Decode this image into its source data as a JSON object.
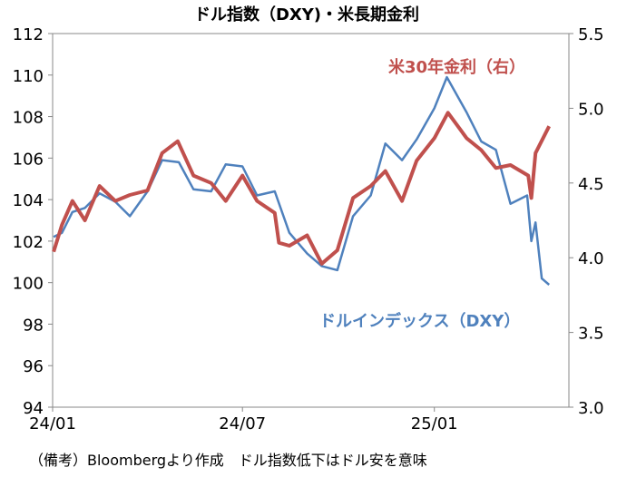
{
  "chart_data": {
    "type": "line",
    "title": "ドル指数（DXY)・米長期金利",
    "note": "（備考）Bloombergより作成　ドル指数低下はドル安を意味",
    "x_ticks": [
      "24/01",
      "24/07",
      "25/01"
    ],
    "y_left": {
      "min": 94,
      "max": 112,
      "ticks": [
        "112",
        "110",
        "108",
        "106",
        "104",
        "102",
        "100",
        "98",
        "96",
        "94"
      ]
    },
    "y_right": {
      "min": 3.0,
      "max": 5.5,
      "ticks": [
        "5.5",
        "5.0",
        "4.5",
        "4.0",
        "3.5",
        "3.0"
      ]
    },
    "grid": false,
    "series": [
      {
        "name": "ドルインデックス（DXY）",
        "axis": "left",
        "color": "#4f81bd",
        "points": [
          [
            "2024-01-02",
            102.2
          ],
          [
            "2024-01-10",
            102.4
          ],
          [
            "2024-01-20",
            103.4
          ],
          [
            "2024-02-01",
            103.6
          ],
          [
            "2024-02-15",
            104.3
          ],
          [
            "2024-03-01",
            103.9
          ],
          [
            "2024-03-15",
            103.2
          ],
          [
            "2024-04-01",
            104.4
          ],
          [
            "2024-04-15",
            105.9
          ],
          [
            "2024-05-01",
            105.8
          ],
          [
            "2024-05-15",
            104.5
          ],
          [
            "2024-06-01",
            104.4
          ],
          [
            "2024-06-15",
            105.7
          ],
          [
            "2024-07-01",
            105.6
          ],
          [
            "2024-07-15",
            104.2
          ],
          [
            "2024-08-01",
            104.4
          ],
          [
            "2024-08-15",
            102.4
          ],
          [
            "2024-09-01",
            101.4
          ],
          [
            "2024-09-15",
            100.8
          ],
          [
            "2024-09-30",
            100.6
          ],
          [
            "2024-10-15",
            103.2
          ],
          [
            "2024-11-01",
            104.2
          ],
          [
            "2024-11-15",
            106.7
          ],
          [
            "2024-12-01",
            105.9
          ],
          [
            "2024-12-15",
            106.9
          ],
          [
            "2025-01-01",
            108.4
          ],
          [
            "2025-01-13",
            109.9
          ],
          [
            "2025-02-01",
            108.2
          ],
          [
            "2025-02-15",
            106.8
          ],
          [
            "2025-03-01",
            106.4
          ],
          [
            "2025-03-15",
            103.8
          ],
          [
            "2025-03-31",
            104.2
          ],
          [
            "2025-04-04",
            102.0
          ],
          [
            "2025-04-08",
            102.9
          ],
          [
            "2025-04-14",
            100.2
          ],
          [
            "2025-04-21",
            99.9
          ]
        ]
      },
      {
        "name": "米30年金利（右）",
        "axis": "right",
        "color": "#c0504d",
        "points": [
          [
            "2024-01-02",
            4.04
          ],
          [
            "2024-01-10",
            4.22
          ],
          [
            "2024-01-20",
            4.38
          ],
          [
            "2024-02-01",
            4.25
          ],
          [
            "2024-02-15",
            4.48
          ],
          [
            "2024-03-01",
            4.38
          ],
          [
            "2024-03-15",
            4.42
          ],
          [
            "2024-04-01",
            4.45
          ],
          [
            "2024-04-15",
            4.7
          ],
          [
            "2024-04-30",
            4.78
          ],
          [
            "2024-05-15",
            4.55
          ],
          [
            "2024-06-01",
            4.5
          ],
          [
            "2024-06-15",
            4.38
          ],
          [
            "2024-07-01",
            4.55
          ],
          [
            "2024-07-15",
            4.38
          ],
          [
            "2024-08-01",
            4.3
          ],
          [
            "2024-08-05",
            4.1
          ],
          [
            "2024-08-15",
            4.08
          ],
          [
            "2024-09-01",
            4.15
          ],
          [
            "2024-09-15",
            3.96
          ],
          [
            "2024-09-30",
            4.05
          ],
          [
            "2024-10-15",
            4.4
          ],
          [
            "2024-11-01",
            4.48
          ],
          [
            "2024-11-15",
            4.58
          ],
          [
            "2024-12-01",
            4.38
          ],
          [
            "2024-12-15",
            4.65
          ],
          [
            "2025-01-01",
            4.8
          ],
          [
            "2025-01-14",
            4.97
          ],
          [
            "2025-02-01",
            4.8
          ],
          [
            "2025-02-15",
            4.72
          ],
          [
            "2025-03-01",
            4.6
          ],
          [
            "2025-03-15",
            4.62
          ],
          [
            "2025-04-01",
            4.55
          ],
          [
            "2025-04-04",
            4.4
          ],
          [
            "2025-04-08",
            4.7
          ],
          [
            "2025-04-21",
            4.88
          ]
        ]
      }
    ],
    "annotations": [
      {
        "text": "米30年金利（右）",
        "color": "#c0504d"
      },
      {
        "text": "ドルインデックス（DXY）",
        "color": "#4f81bd"
      }
    ]
  }
}
